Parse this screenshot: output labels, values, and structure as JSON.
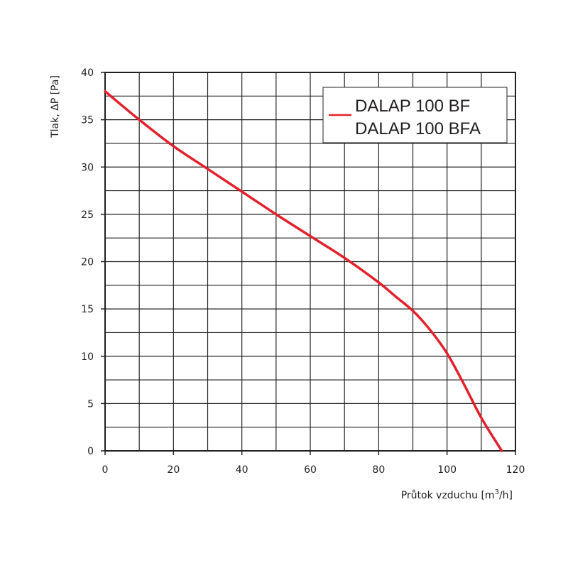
{
  "chart_data": {
    "type": "line",
    "title": "",
    "xlabel": "Průtok vzduchu [m³/h]",
    "xlabel_parts": {
      "main": "Průtok vzduchu [m",
      "sup": "3",
      "tail": "/h]"
    },
    "ylabel": "Tlak, ΔP [Pa]",
    "xlim": [
      0,
      120
    ],
    "ylim": [
      0,
      40
    ],
    "x_ticks": [
      0,
      20,
      40,
      60,
      80,
      100,
      120
    ],
    "y_ticks": [
      0,
      5,
      10,
      15,
      20,
      25,
      30,
      35,
      40
    ],
    "x_tick_labels": [
      "0",
      "20",
      "40",
      "60",
      "80",
      "100",
      "120"
    ],
    "y_tick_labels": [
      "0",
      "5",
      "10",
      "15",
      "20",
      "25",
      "30",
      "35",
      "40"
    ],
    "grid": true,
    "grid_minor_x_step": 10,
    "grid_minor_y_step": 2.5,
    "legend_position": "top-right",
    "series": [
      {
        "name": "DALAP 100 BF\nDALAP 100 BFA",
        "legend_lines": [
          "DALAP 100 BF",
          "DALAP 100 BFA"
        ],
        "color": "#e3202b",
        "x": [
          0,
          10,
          20,
          30,
          40,
          50,
          60,
          70,
          80,
          85,
          90,
          95,
          100,
          105,
          110,
          116
        ],
        "y": [
          38,
          35,
          32.2,
          29.8,
          27.4,
          25,
          22.7,
          20.4,
          17.8,
          16.3,
          14.8,
          12.8,
          10.3,
          7,
          3.5,
          0
        ]
      }
    ]
  }
}
